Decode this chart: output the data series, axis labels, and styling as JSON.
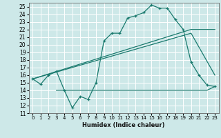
{
  "xlabel": "Humidex (Indice chaleur)",
  "xlim": [
    -0.5,
    23.5
  ],
  "ylim": [
    11,
    25.5
  ],
  "xticks": [
    0,
    1,
    2,
    3,
    4,
    5,
    6,
    7,
    8,
    9,
    10,
    11,
    12,
    13,
    14,
    15,
    16,
    17,
    18,
    19,
    20,
    21,
    22,
    23
  ],
  "yticks": [
    11,
    12,
    13,
    14,
    15,
    16,
    17,
    18,
    19,
    20,
    21,
    22,
    23,
    24,
    25
  ],
  "bg_color": "#cde8e8",
  "line_color": "#1a7a6e",
  "grid_color": "#ffffff",
  "main_line": {
    "x": [
      0,
      1,
      2,
      3,
      4,
      5,
      6,
      7,
      8,
      9,
      10,
      11,
      12,
      13,
      14,
      15,
      16,
      17,
      18,
      19,
      20,
      21,
      22,
      23
    ],
    "y": [
      15.5,
      14.8,
      16.0,
      16.5,
      14.0,
      11.7,
      13.2,
      12.8,
      15.0,
      20.5,
      21.5,
      21.5,
      23.5,
      23.8,
      24.2,
      25.2,
      24.8,
      24.8,
      23.3,
      22.0,
      17.7,
      16.0,
      14.7,
      14.5
    ]
  },
  "flat_line": {
    "x": [
      3,
      14,
      16,
      22,
      23
    ],
    "y": [
      14.0,
      14.0,
      14.0,
      14.0,
      14.5
    ]
  },
  "diag_line_upper": {
    "x": [
      0,
      20,
      23
    ],
    "y": [
      15.5,
      22.0,
      22.0
    ]
  },
  "diag_line_lower": {
    "x": [
      0,
      20,
      23
    ],
    "y": [
      15.5,
      21.5,
      16.0
    ]
  }
}
